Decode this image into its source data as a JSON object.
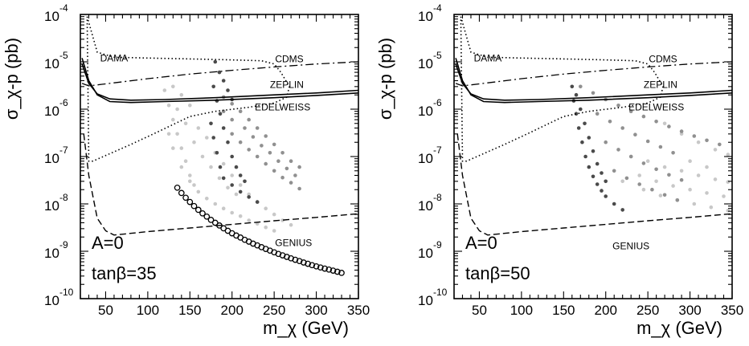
{
  "chart_data": [
    {
      "type": "scatter",
      "panel_label_a": "A=0",
      "panel_label_b": "tanβ=35",
      "xlabel": "m_χ (GeV)",
      "ylabel": "σ_χ-p (pb)",
      "xlim": [
        20,
        350
      ],
      "ylim_log10": [
        -10,
        -4
      ],
      "xticks": [
        "50",
        "100",
        "150",
        "200",
        "250",
        "300",
        "350"
      ],
      "yticks": [
        {
          "base": "10",
          "exp": "-4"
        },
        {
          "base": "10",
          "exp": "-5"
        },
        {
          "base": "10",
          "exp": "-6"
        },
        {
          "base": "10",
          "exp": "-7"
        },
        {
          "base": "10",
          "exp": "-8"
        },
        {
          "base": "10",
          "exp": "-9"
        },
        {
          "base": "10",
          "exp": "-10"
        }
      ],
      "curve_labels": [
        {
          "text": "DAMA",
          "x": 60,
          "y": 1.2e-05
        },
        {
          "text": "CDMS",
          "x": 268,
          "y": 1.15e-05
        },
        {
          "text": "ZEPLIN",
          "x": 265,
          "y": 3.3e-06
        },
        {
          "text": "EDELWEISS",
          "x": 260,
          "y": 1.1e-06
        },
        {
          "text": "GENIUS",
          "x": 273,
          "y": 1.5e-09
        }
      ],
      "region_points": {
        "light": [
          [
            120,
            2.5e-06
          ],
          [
            125,
            1.2e-06
          ],
          [
            130,
            6e-07
          ],
          [
            135,
            3e-07
          ],
          [
            140,
            1.5e-07
          ],
          [
            145,
            8e-08
          ],
          [
            150,
            4e-08
          ],
          [
            155,
            2.5e-08
          ],
          [
            125,
            3e-07
          ],
          [
            130,
            1.5e-07
          ],
          [
            140,
            6e-08
          ],
          [
            150,
            3e-08
          ],
          [
            160,
            1.8e-08
          ],
          [
            170,
            1.3e-08
          ],
          [
            180,
            1e-08
          ],
          [
            190,
            8e-09
          ],
          [
            200,
            6.5e-09
          ],
          [
            210,
            5.5e-09
          ],
          [
            220,
            4.5e-09
          ],
          [
            230,
            3.8e-09
          ],
          [
            240,
            3.2e-09
          ],
          [
            250,
            2.7e-09
          ],
          [
            135,
            1e-06
          ],
          [
            145,
            5e-07
          ],
          [
            155,
            2e-07
          ],
          [
            165,
            1e-07
          ],
          [
            175,
            6e-08
          ],
          [
            185,
            3.5e-08
          ],
          [
            195,
            2.2e-08
          ],
          [
            205,
            1.6e-08
          ],
          [
            140,
            2e-06
          ],
          [
            130,
            3e-06
          ],
          [
            150,
            1.2e-06
          ],
          [
            160,
            4e-07
          ],
          [
            170,
            2.5e-07
          ],
          [
            180,
            1.2e-07
          ],
          [
            190,
            7e-08
          ],
          [
            200,
            4e-08
          ],
          [
            210,
            2.5e-08
          ],
          [
            220,
            1.6e-08
          ],
          [
            230,
            1.1e-08
          ],
          [
            240,
            8e-09
          ],
          [
            250,
            6e-09
          ],
          [
            260,
            4.5e-09
          ],
          [
            270,
            3.6e-09
          ]
        ],
        "dark": [
          [
            180,
            1e-05
          ],
          [
            185,
            6e-06
          ],
          [
            190,
            4e-06
          ],
          [
            195,
            2.5e-06
          ],
          [
            200,
            1.6e-06
          ],
          [
            178,
            3e-06
          ],
          [
            182,
            1.5e-06
          ],
          [
            186,
            8e-07
          ],
          [
            190,
            4e-07
          ],
          [
            195,
            2e-07
          ],
          [
            200,
            1e-07
          ],
          [
            205,
            6e-08
          ],
          [
            210,
            4e-08
          ],
          [
            215,
            3e-08
          ],
          [
            175,
            5e-07
          ],
          [
            178,
            2.5e-07
          ],
          [
            182,
            1.2e-07
          ],
          [
            186,
            6e-08
          ],
          [
            190,
            3.5e-08
          ],
          [
            200,
            2.5e-08
          ],
          [
            210,
            1.8e-08
          ],
          [
            220,
            1.4e-08
          ],
          [
            230,
            1.1e-08
          ]
        ],
        "medium": [
          [
            190,
            1.8e-06
          ],
          [
            200,
            1.3e-06
          ],
          [
            210,
            9e-07
          ],
          [
            220,
            6e-07
          ],
          [
            230,
            4e-07
          ],
          [
            240,
            2.7e-07
          ],
          [
            250,
            1.8e-07
          ],
          [
            260,
            1.2e-07
          ],
          [
            270,
            8e-08
          ],
          [
            280,
            6e-08
          ],
          [
            200,
            3e-07
          ],
          [
            210,
            2e-07
          ],
          [
            220,
            1.4e-07
          ],
          [
            230,
            1e-07
          ],
          [
            240,
            7e-08
          ],
          [
            250,
            5e-08
          ],
          [
            260,
            3.6e-08
          ],
          [
            270,
            2.8e-08
          ],
          [
            280,
            2.1e-08
          ],
          [
            190,
            9e-07
          ],
          [
            200,
            6e-07
          ],
          [
            215,
            4e-07
          ],
          [
            225,
            2.6e-07
          ],
          [
            235,
            1.7e-07
          ],
          [
            245,
            1.2e-07
          ],
          [
            255,
            8e-08
          ],
          [
            265,
            5.6e-08
          ],
          [
            275,
            4e-08
          ]
        ],
        "circles": [
          [
            135,
            2.2e-08
          ],
          [
            140,
            1.7e-08
          ],
          [
            145,
            1.35e-08
          ],
          [
            150,
            1.1e-08
          ],
          [
            155,
            9e-09
          ],
          [
            160,
            7.5e-09
          ],
          [
            165,
            6.3e-09
          ],
          [
            170,
            5.4e-09
          ],
          [
            175,
            4.6e-09
          ],
          [
            180,
            4e-09
          ],
          [
            185,
            3.5e-09
          ],
          [
            190,
            3.05e-09
          ],
          [
            195,
            2.7e-09
          ],
          [
            200,
            2.4e-09
          ],
          [
            205,
            2.15e-09
          ],
          [
            210,
            1.95e-09
          ],
          [
            215,
            1.75e-09
          ],
          [
            220,
            1.6e-09
          ],
          [
            225,
            1.45e-09
          ],
          [
            230,
            1.33e-09
          ],
          [
            235,
            1.22e-09
          ],
          [
            240,
            1.12e-09
          ],
          [
            245,
            1.03e-09
          ],
          [
            250,
            9.5e-10
          ],
          [
            255,
            8.8e-10
          ],
          [
            260,
            8.2e-10
          ],
          [
            265,
            7.6e-10
          ],
          [
            270,
            7.1e-10
          ],
          [
            275,
            6.6e-10
          ],
          [
            280,
            6.2e-10
          ],
          [
            285,
            5.8e-10
          ],
          [
            290,
            5.45e-10
          ],
          [
            295,
            5.1e-10
          ],
          [
            300,
            4.8e-10
          ],
          [
            305,
            4.55e-10
          ],
          [
            310,
            4.3e-10
          ],
          [
            315,
            4.1e-10
          ],
          [
            320,
            3.9e-10
          ],
          [
            325,
            3.7e-10
          ],
          [
            330,
            3.5e-10
          ]
        ]
      }
    },
    {
      "type": "scatter",
      "panel_label_a": "A=0",
      "panel_label_b": "tanβ=50",
      "xlabel": "m_χ (GeV)",
      "ylabel": "σ_χ-p (pb)",
      "xlim": [
        20,
        350
      ],
      "ylim_log10": [
        -10,
        -4
      ],
      "xticks": [
        "50",
        "100",
        "150",
        "200",
        "250",
        "300",
        "350"
      ],
      "yticks": [
        {
          "base": "10",
          "exp": "-4"
        },
        {
          "base": "10",
          "exp": "-5"
        },
        {
          "base": "10",
          "exp": "-6"
        },
        {
          "base": "10",
          "exp": "-7"
        },
        {
          "base": "10",
          "exp": "-8"
        },
        {
          "base": "10",
          "exp": "-9"
        },
        {
          "base": "10",
          "exp": "-10"
        }
      ],
      "curve_labels": [
        {
          "text": "DAMA",
          "x": 60,
          "y": 1.2e-05
        },
        {
          "text": "CDMS",
          "x": 268,
          "y": 1.15e-05
        },
        {
          "text": "ZEPLIN",
          "x": 265,
          "y": 3.3e-06
        },
        {
          "text": "EDELWEISS",
          "x": 260,
          "y": 1.1e-06
        },
        {
          "text": "GENIUS",
          "x": 230,
          "y": 1.3e-09
        }
      ],
      "region_points": {
        "light": [
          [
            230,
            1e-07
          ],
          [
            250,
            8e-08
          ],
          [
            270,
            6e-08
          ],
          [
            290,
            5e-08
          ],
          [
            310,
            4e-08
          ],
          [
            330,
            3.3e-08
          ],
          [
            345,
            2.9e-08
          ],
          [
            240,
            4e-08
          ],
          [
            260,
            3e-08
          ],
          [
            280,
            2.4e-08
          ],
          [
            300,
            2e-08
          ],
          [
            320,
            1.7e-08
          ],
          [
            340,
            1.45e-08
          ],
          [
            220,
            3e-08
          ],
          [
            245,
            2e-08
          ],
          [
            265,
            1.5e-08
          ],
          [
            285,
            1.2e-08
          ],
          [
            305,
            1e-08
          ],
          [
            325,
            8.5e-09
          ],
          [
            345,
            7.2e-09
          ],
          [
            270,
            5e-07
          ],
          [
            290,
            3e-07
          ],
          [
            310,
            2e-07
          ],
          [
            330,
            1.4e-07
          ],
          [
            345,
            1.1e-07
          ],
          [
            300,
            8e-08
          ],
          [
            320,
            6e-08
          ]
        ],
        "dark": [
          [
            160,
            3e-06
          ],
          [
            162,
            1.5e-06
          ],
          [
            165,
            8e-07
          ],
          [
            168,
            4e-07
          ],
          [
            172,
            2e-07
          ],
          [
            176,
            1e-07
          ],
          [
            180,
            6e-08
          ],
          [
            185,
            3.8e-08
          ],
          [
            190,
            2.6e-08
          ],
          [
            195,
            1.9e-08
          ],
          [
            200,
            1.45e-08
          ],
          [
            210,
            1e-08
          ],
          [
            220,
            7.5e-09
          ],
          [
            165,
            2e-06
          ],
          [
            170,
            1e-06
          ],
          [
            175,
            5e-07
          ],
          [
            180,
            2.5e-07
          ],
          [
            185,
            1.3e-07
          ],
          [
            190,
            7e-08
          ],
          [
            195,
            4.5e-08
          ],
          [
            200,
            3e-08
          ]
        ],
        "medium": [
          [
            170,
            3e-06
          ],
          [
            185,
            2.2e-06
          ],
          [
            200,
            1.6e-06
          ],
          [
            215,
            1.2e-06
          ],
          [
            230,
            9e-07
          ],
          [
            245,
            7e-07
          ],
          [
            260,
            5.5e-07
          ],
          [
            275,
            4.3e-07
          ],
          [
            290,
            3.4e-07
          ],
          [
            305,
            2.7e-07
          ],
          [
            320,
            2.2e-07
          ],
          [
            335,
            1.8e-07
          ],
          [
            190,
            8e-07
          ],
          [
            205,
            5.5e-07
          ],
          [
            220,
            4e-07
          ],
          [
            235,
            2.9e-07
          ],
          [
            250,
            2.1e-07
          ],
          [
            265,
            1.6e-07
          ],
          [
            280,
            1.2e-07
          ],
          [
            200,
            2e-07
          ],
          [
            215,
            1.4e-07
          ],
          [
            230,
            1e-07
          ],
          [
            245,
            7.2e-08
          ],
          [
            260,
            5.4e-08
          ],
          [
            275,
            4.1e-08
          ],
          [
            290,
            3.2e-08
          ],
          [
            210,
            5e-08
          ],
          [
            225,
            3.5e-08
          ],
          [
            240,
            2.6e-08
          ],
          [
            255,
            2e-08
          ],
          [
            270,
            1.55e-08
          ],
          [
            285,
            1.2e-08
          ]
        ],
        "circles": []
      }
    }
  ]
}
